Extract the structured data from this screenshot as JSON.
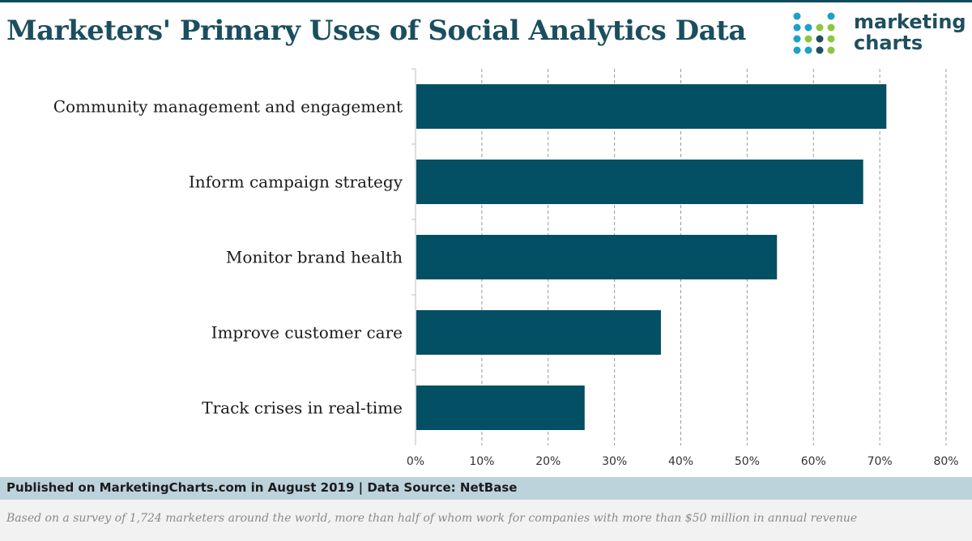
{
  "header": {
    "title": "Marketers' Primary Uses of Social Analytics Data"
  },
  "logo": {
    "line1": "marketing",
    "line2": "charts",
    "dot_colors": [
      "#1da1c7",
      "#8cc63f",
      "#1e4f5f"
    ]
  },
  "chart_data": {
    "type": "bar",
    "orientation": "horizontal",
    "categories": [
      "Community management and engagement",
      "Inform campaign strategy",
      "Monitor brand health",
      "Improve customer care",
      "Track crises in real-time"
    ],
    "values": [
      71,
      67.5,
      54.5,
      37,
      25.5
    ],
    "xlim": [
      0,
      80
    ],
    "ticks": [
      "0%",
      "10%",
      "20%",
      "30%",
      "40%",
      "50%",
      "60%",
      "70%",
      "80%"
    ],
    "tick_values": [
      0,
      10,
      20,
      30,
      40,
      50,
      60,
      70,
      80
    ],
    "grid": "vertical dashed",
    "bar_color": "#034f63"
  },
  "footer": {
    "published": "Published on MarketingCharts.com in August 2019 | Data Source: NetBase",
    "note": "Based on a survey of 1,724 marketers around the world, more than half of whom work for companies with more than $50 million in annual revenue"
  }
}
